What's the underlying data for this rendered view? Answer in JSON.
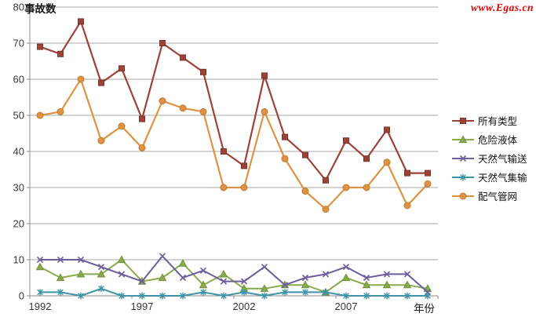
{
  "watermark": "www.Egas.cn",
  "chart_data": {
    "type": "line",
    "title": "",
    "ylabel": "事故数",
    "xlabel": "年份",
    "ylim": [
      0,
      80
    ],
    "y_ticks": [
      0,
      10,
      20,
      30,
      40,
      50,
      60,
      70,
      80
    ],
    "grid": "horizontal-on",
    "legend_position": "right",
    "grid_color": "#a9a9a9",
    "axis_color": "#8c8c8c",
    "tick_label_color": "#383838",
    "categories": [
      "1992",
      "1993",
      "1994",
      "1995",
      "1996",
      "1997",
      "1998",
      "1999",
      "2000",
      "2001",
      "2002",
      "2003",
      "2004",
      "2005",
      "2006",
      "2007",
      "2008",
      "2009",
      "2010",
      "2011"
    ],
    "x_tick_shown_every": 5,
    "x_tick_labels": [
      "1992",
      "1997",
      "2002",
      "2007"
    ],
    "series": [
      {
        "name": "所有类型",
        "marker": "square",
        "color": "#9C4237",
        "edge": "#7D352C",
        "values": [
          69,
          67,
          76,
          59,
          63,
          49,
          70,
          66,
          62,
          40,
          36,
          61,
          44,
          39,
          32,
          43,
          38,
          46,
          34,
          34
        ]
      },
      {
        "name": "危险液体",
        "marker": "triangle",
        "color": "#88AB4C",
        "edge": "#6F9038",
        "values": [
          8,
          5,
          6,
          6,
          10,
          4,
          5,
          9,
          3,
          6,
          2,
          2,
          3,
          3,
          1,
          5,
          3,
          3,
          3,
          2
        ]
      },
      {
        "name": "天然气输送",
        "marker": "x",
        "color": "#6D5C9E",
        "edge": "#5A4B85",
        "values": [
          10,
          10,
          10,
          8,
          6,
          4,
          11,
          5,
          7,
          4,
          4,
          8,
          3,
          5,
          6,
          8,
          5,
          6,
          6,
          1
        ]
      },
      {
        "name": "天然气集输",
        "marker": "asterisk",
        "color": "#3F93A9",
        "edge": "#337A8D",
        "values": [
          1,
          1,
          0,
          2,
          0,
          0,
          0,
          0,
          1,
          0,
          1,
          0,
          1,
          1,
          1,
          0,
          0,
          0,
          0,
          0
        ]
      },
      {
        "name": "配气管网",
        "marker": "circle",
        "color": "#DF9243",
        "edge": "#BF7A30",
        "values": [
          50,
          51,
          60,
          43,
          47,
          41,
          54,
          52,
          51,
          30,
          30,
          51,
          38,
          29,
          24,
          30,
          30,
          37,
          25,
          31
        ]
      }
    ]
  }
}
